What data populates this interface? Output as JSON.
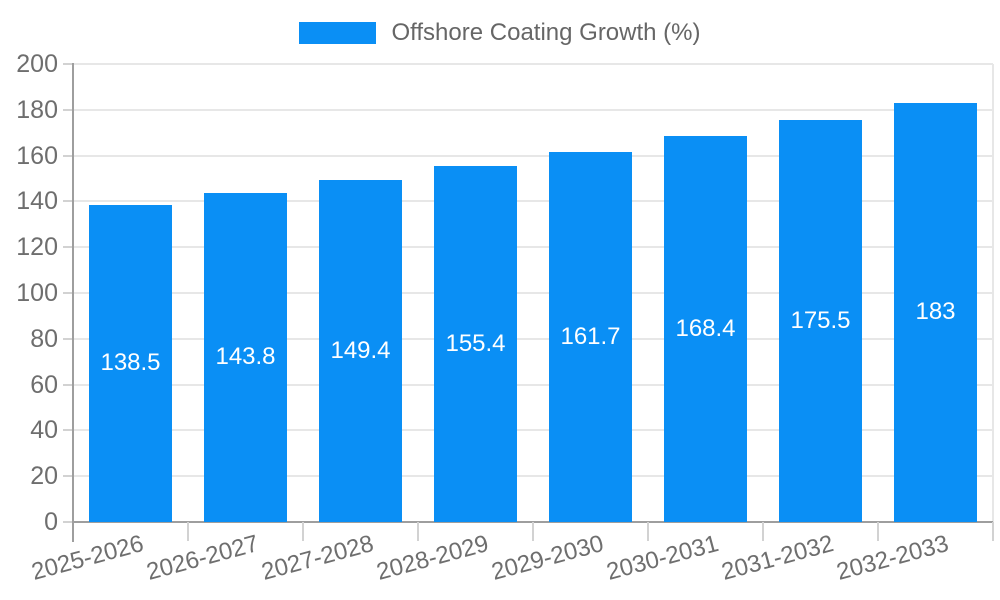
{
  "chart_data": {
    "type": "bar",
    "title": "",
    "legend": {
      "label": "Offshore Coating Growth (%)",
      "position": "top-center"
    },
    "categories": [
      "2025-2026",
      "2026-2027",
      "2027-2028",
      "2028-2029",
      "2029-2030",
      "2030-2031",
      "2031-2032",
      "2032-2033"
    ],
    "series": [
      {
        "name": "Offshore Coating Growth (%)",
        "values": [
          138.5,
          143.8,
          149.4,
          155.4,
          161.7,
          168.4,
          175.5,
          183
        ]
      }
    ],
    "value_labels": [
      "138.5",
      "143.8",
      "149.4",
      "155.4",
      "161.7",
      "168.4",
      "175.5",
      "183"
    ],
    "xlabel": "",
    "ylabel": "",
    "ylim": [
      0,
      200
    ],
    "yticks": [
      0,
      20,
      40,
      60,
      80,
      100,
      120,
      140,
      160,
      180,
      200
    ],
    "grid": true,
    "x_label_rotation_deg": -15,
    "colors": {
      "bar": "#0a8ff5",
      "bar_value_text": "#ffffff",
      "axis_text": "#6e6e6e",
      "legend_text": "#666666",
      "axis_line": "#9e9e9e",
      "grid_line": "#e7e7e7",
      "tick_line": "#d2d2d2",
      "background": "#ffffff"
    }
  }
}
